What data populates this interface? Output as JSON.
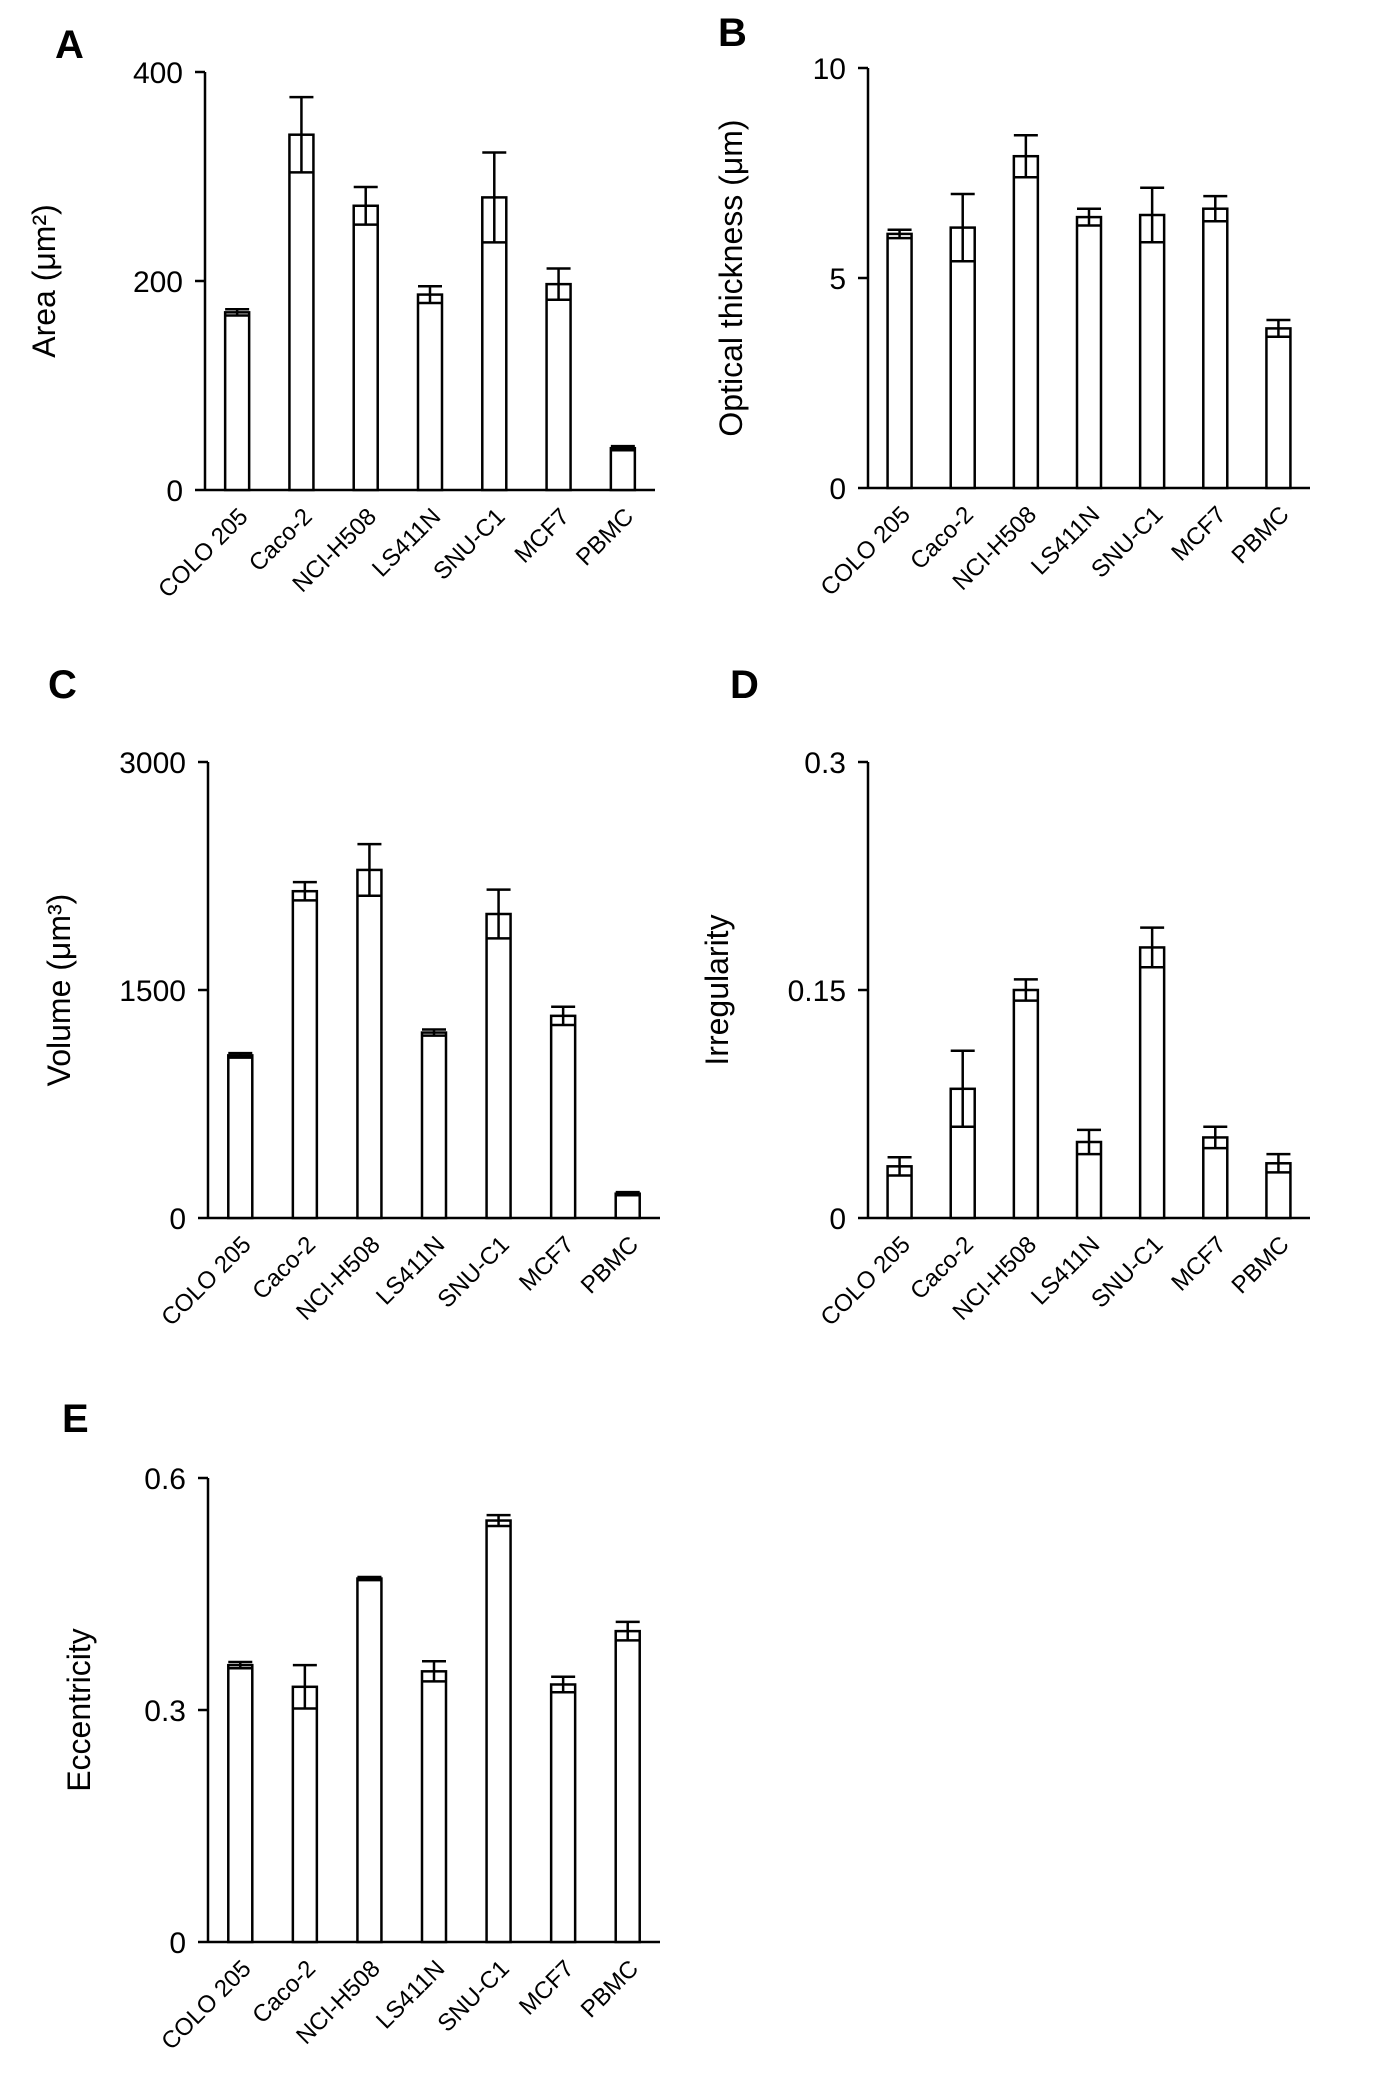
{
  "chart_data": [
    {
      "type": "bar",
      "panel": "A",
      "categories": [
        "COLO 205",
        "Caco-2",
        "NCI-H508",
        "LS411N",
        "SNU-C1",
        "MCF7",
        "PBMC"
      ],
      "values": [
        170,
        340,
        272,
        187,
        280,
        197,
        40
      ],
      "errors": [
        3,
        36,
        18,
        8,
        43,
        15,
        2
      ],
      "ylabel": "Area (μm²)",
      "ylim": [
        0,
        400
      ],
      "yticks": [
        "0",
        "200",
        "400"
      ]
    },
    {
      "type": "bar",
      "panel": "B",
      "categories": [
        "COLO 205",
        "Caco-2",
        "NCI-H508",
        "LS411N",
        "SNU-C1",
        "MCF7",
        "PBMC"
      ],
      "values": [
        6.05,
        6.2,
        7.9,
        6.45,
        6.5,
        6.65,
        3.8
      ],
      "errors": [
        0.1,
        0.8,
        0.5,
        0.2,
        0.65,
        0.3,
        0.2
      ],
      "ylabel": "Optical thickness (μm)",
      "ylim": [
        0,
        10
      ],
      "yticks": [
        "0",
        "5",
        "10"
      ]
    },
    {
      "type": "bar",
      "panel": "C",
      "categories": [
        "COLO 205",
        "Caco-2",
        "NCI-H508",
        "LS411N",
        "SNU-C1",
        "MCF7",
        "PBMC"
      ],
      "values": [
        1070,
        2150,
        2290,
        1220,
        2000,
        1330,
        160
      ],
      "errors": [
        15,
        60,
        170,
        20,
        160,
        60,
        10
      ],
      "ylabel": "Volume (μm³)",
      "ylim": [
        0,
        3000
      ],
      "yticks": [
        "0",
        "1500",
        "3000"
      ]
    },
    {
      "type": "bar",
      "panel": "D",
      "categories": [
        "COLO 205",
        "Caco-2",
        "NCI-H508",
        "LS411N",
        "SNU-C1",
        "MCF7",
        "PBMC"
      ],
      "values": [
        0.034,
        0.085,
        0.15,
        0.05,
        0.178,
        0.053,
        0.036
      ],
      "errors": [
        0.006,
        0.025,
        0.007,
        0.008,
        0.013,
        0.007,
        0.006
      ],
      "ylabel": "Irregularity",
      "ylim": [
        0,
        0.3
      ],
      "yticks": [
        "0",
        "0.15",
        "0.3"
      ]
    },
    {
      "type": "bar",
      "panel": "E",
      "categories": [
        "COLO 205",
        "Caco-2",
        "NCI-H508",
        "LS411N",
        "SNU-C1",
        "MCF7",
        "PBMC"
      ],
      "values": [
        0.358,
        0.33,
        0.47,
        0.35,
        0.545,
        0.333,
        0.402
      ],
      "errors": [
        0.004,
        0.028,
        0.002,
        0.013,
        0.007,
        0.01,
        0.012
      ],
      "ylabel": "Eccentricity",
      "ylim": [
        0,
        0.6
      ],
      "yticks": [
        "0",
        "0.3",
        "0.6"
      ]
    }
  ]
}
